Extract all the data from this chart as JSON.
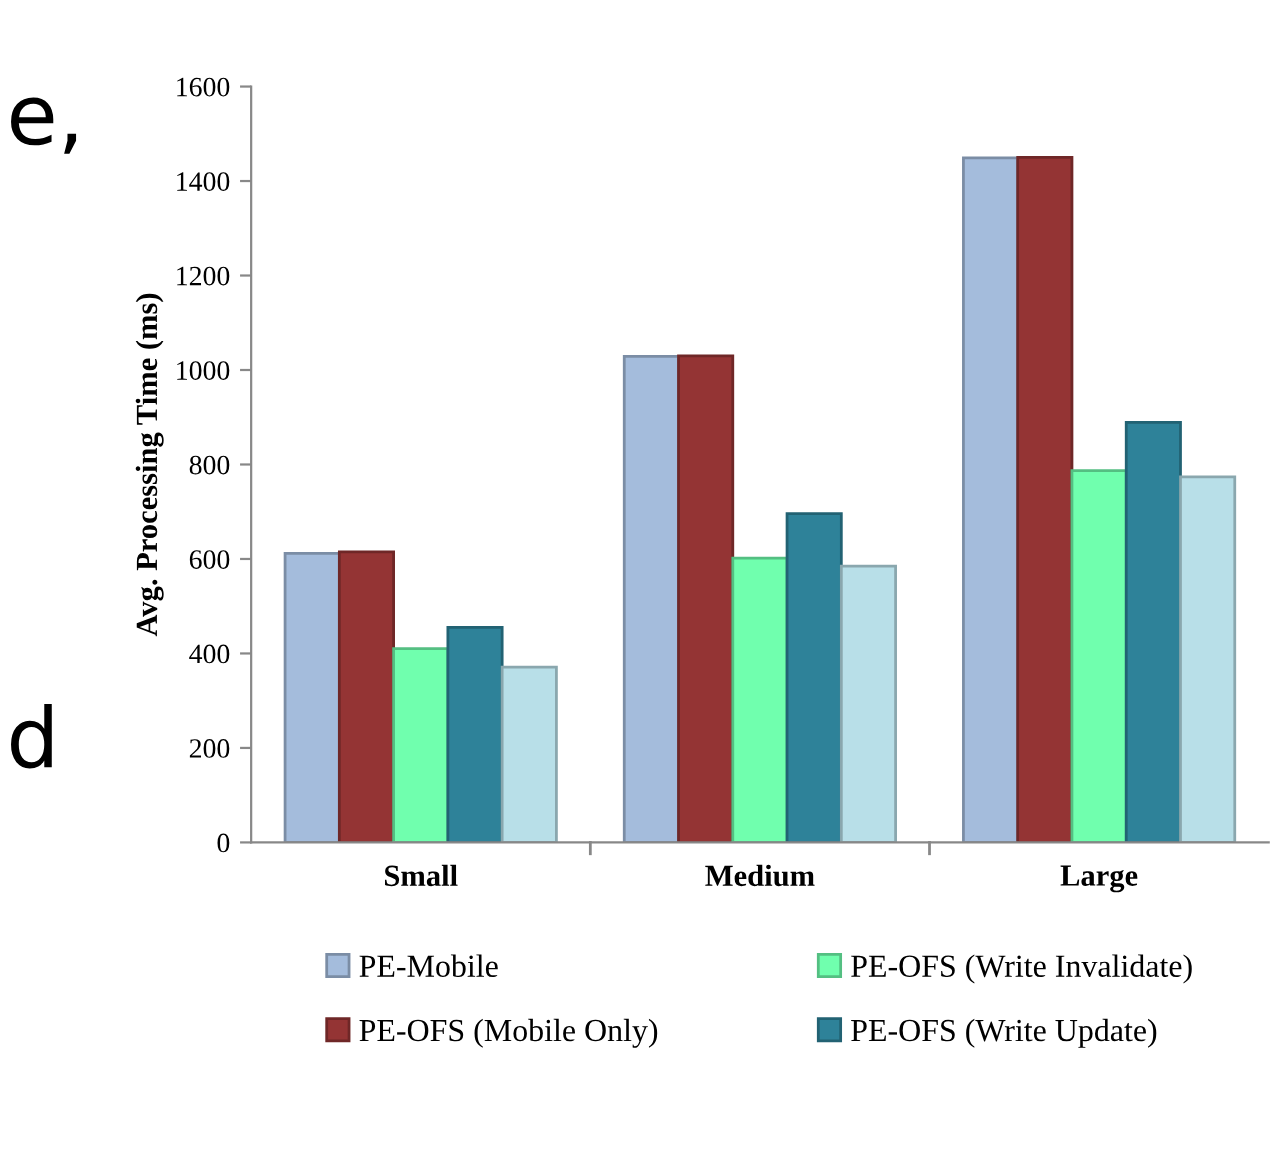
{
  "chart_data": {
    "type": "bar",
    "ylabel": "Avg. Processing Time (ms)",
    "categories": [
      "Small",
      "Medium",
      "Large"
    ],
    "series": [
      {
        "name": "PE-Mobile",
        "color": "#a4bcdc",
        "values": [
          612,
          1029,
          1449
        ]
      },
      {
        "name": "PE-OFS (Mobile Only)",
        "color": "#943434",
        "values": [
          615,
          1030,
          1450
        ]
      },
      {
        "name": "PE-OFS (Write Invalidate)",
        "color": "#70ffae",
        "values": [
          410,
          602,
          787
        ]
      },
      {
        "name": "PE-OFS (Write Update)",
        "color": "#2e8299",
        "values": [
          455,
          696,
          889
        ]
      },
      {
        "color": "#b8dfe8",
        "values": [
          371,
          585,
          774
        ]
      }
    ],
    "ylim": [
      0,
      1600
    ],
    "yticks": [
      0,
      200,
      400,
      600,
      800,
      1000,
      1200,
      1400,
      1600
    ],
    "grid": false,
    "legend": "bottom",
    "annotations": [
      "e,",
      "d"
    ]
  }
}
